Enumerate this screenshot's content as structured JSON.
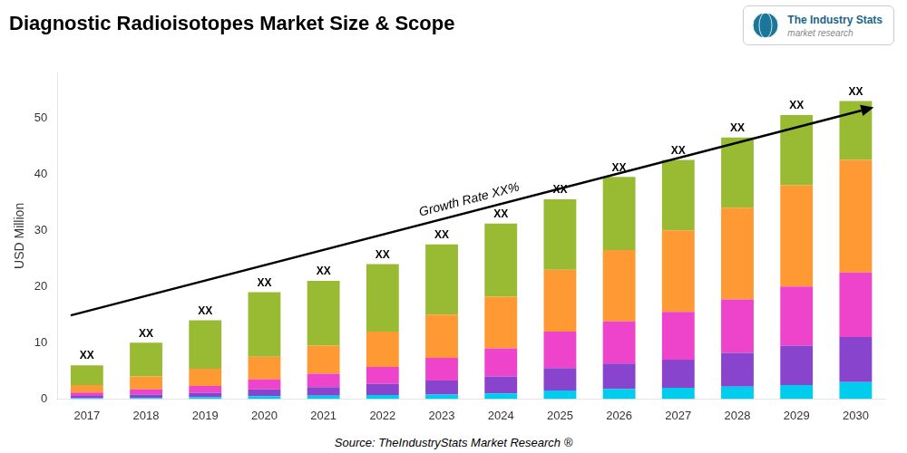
{
  "chart_data": {
    "type": "bar",
    "title": "Diagnostic Radioisotopes Market Size & Scope",
    "ylabel": "USD Million",
    "source": "Source: TheIndustryStats Market Research ®",
    "categories": [
      "2017",
      "2018",
      "2019",
      "2020",
      "2021",
      "2022",
      "2023",
      "2024",
      "2025",
      "2026",
      "2027",
      "2028",
      "2029",
      "2030"
    ],
    "series": [
      {
        "color": "#00ccee",
        "values": [
          0.15,
          0.2,
          0.3,
          0.5,
          0.6,
          0.7,
          0.8,
          1.0,
          1.5,
          1.8,
          2.0,
          2.2,
          2.5,
          3.0
        ]
      },
      {
        "color": "#8844cc",
        "values": [
          0.4,
          0.6,
          0.8,
          1.2,
          1.5,
          2.0,
          2.5,
          3.0,
          4.0,
          4.5,
          5.0,
          6.0,
          7.0,
          8.0
        ]
      },
      {
        "color": "#ee44cc",
        "values": [
          0.6,
          0.9,
          1.2,
          1.8,
          2.4,
          3.0,
          4.0,
          5.0,
          6.5,
          7.5,
          8.5,
          9.5,
          10.5,
          11.5
        ]
      },
      {
        "color": "#ff9933",
        "values": [
          1.35,
          2.3,
          3.1,
          4.0,
          5.0,
          6.3,
          7.7,
          9.2,
          11.0,
          12.7,
          14.5,
          16.3,
          18.0,
          20.0
        ]
      },
      {
        "color": "#99bb33",
        "values": [
          3.5,
          6.0,
          8.6,
          11.5,
          11.5,
          12.0,
          12.5,
          13.0,
          12.5,
          13.0,
          12.5,
          12.5,
          12.5,
          10.5
        ]
      }
    ],
    "stacked": true,
    "total_labels": [
      "XX",
      "XX",
      "XX",
      "XX",
      "XX",
      "XX",
      "XX",
      "XX",
      "XX",
      "XX",
      "XX",
      "XX",
      "XX",
      "XX"
    ],
    "annotation": "Growth Rate XX%",
    "logo": [
      {
        "text": "The Industry Stats",
        "color": "#1a6688"
      },
      {
        "text": "market research",
        "color": "#888888"
      }
    ],
    "ylim": [
      0,
      58
    ],
    "yticks": [
      0,
      10,
      20,
      30,
      40,
      50
    ],
    "grid": false
  }
}
